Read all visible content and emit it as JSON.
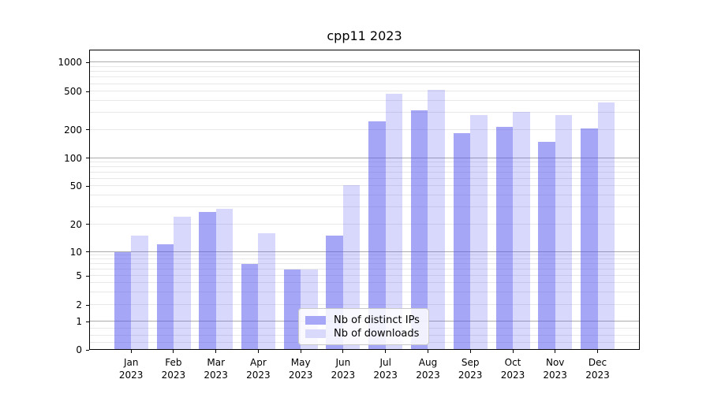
{
  "chart_data": {
    "type": "bar",
    "title": "cpp11 2023",
    "xlabel": "",
    "ylabel": "",
    "yscale": "symlog",
    "yticks": [
      0,
      1,
      2,
      5,
      10,
      20,
      50,
      100,
      200,
      500,
      1000
    ],
    "ylim": [
      0,
      1365
    ],
    "grid": true,
    "legend_position": "lower center",
    "categories": [
      "Jan",
      "Feb",
      "Mar",
      "Apr",
      "May",
      "Jun",
      "Jul",
      "Aug",
      "Sep",
      "Oct",
      "Nov",
      "Dec"
    ],
    "year": "2023",
    "series": [
      {
        "name": "Nb of distinct IPs",
        "color": "rgba(85,85,240,0.52)",
        "legend_color": "#a7a7f7",
        "values": [
          10,
          12,
          27,
          7,
          6,
          15,
          245,
          320,
          185,
          213,
          150,
          206
        ]
      },
      {
        "name": "Nb of downloads",
        "color": "rgba(85,85,240,0.23)",
        "legend_color": "#d9d9fb",
        "values": [
          15,
          24,
          29,
          16,
          6,
          51,
          480,
          520,
          283,
          310,
          283,
          385
        ]
      }
    ]
  }
}
